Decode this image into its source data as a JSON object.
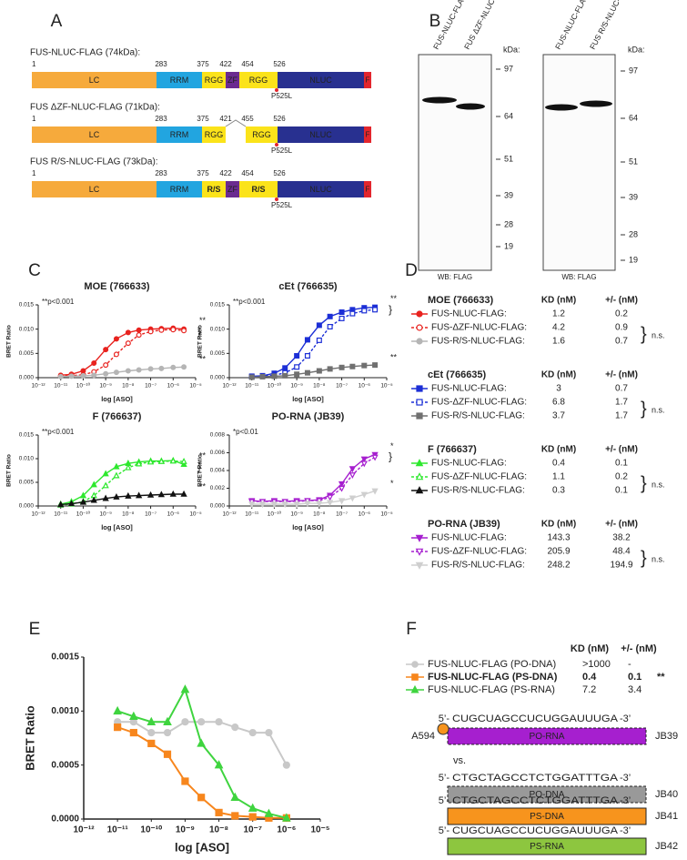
{
  "panel_labels": [
    "A",
    "B",
    "C",
    "D",
    "E",
    "F"
  ],
  "diagram_a": {
    "constructs": [
      {
        "label": "FUS-NLUC-FLAG (74kDa):",
        "positions": [
          1,
          283,
          375,
          422,
          454,
          526
        ],
        "domains": [
          "LC",
          "RRM",
          "RGG",
          "ZF",
          "RGG",
          "NLUC",
          "F"
        ],
        "mutation": "P525L"
      },
      {
        "label": "FUS ΔZF-NLUC-FLAG (71kDa):",
        "positions": [
          1,
          283,
          375,
          421,
          455,
          526
        ],
        "domains": [
          "LC",
          "RRM",
          "RGG",
          "RGG",
          "NLUC",
          "F"
        ],
        "mutation": "P525L"
      },
      {
        "label": "FUS R/S-NLUC-FLAG (73kDa):",
        "positions": [
          1,
          283,
          375,
          422,
          454,
          526
        ],
        "domains": [
          "LC",
          "RRM",
          "R/S",
          "ZF",
          "R/S",
          "NLUC",
          "F"
        ],
        "mutation": "P525L"
      }
    ]
  },
  "blot_b": {
    "blots": [
      {
        "lanes": [
          "FUS-NLUC-FLAG",
          "FUS ΔZF-NLUC-FLAG"
        ],
        "unit": "kDa:",
        "markers": [
          97,
          64,
          51,
          39,
          28,
          19
        ],
        "caption": "WB: FLAG"
      },
      {
        "lanes": [
          "FUS-NLUC-FLAG",
          "FUS R/S-NLUC-FLAG"
        ],
        "unit": "kDa:",
        "markers": [
          97,
          64,
          51,
          39,
          28,
          19
        ],
        "caption": "WB: FLAG"
      }
    ]
  },
  "chart_data": [
    {
      "type": "line",
      "title": "MOE (766633)",
      "significance": "**p<0.001",
      "marks": [
        "**",
        "**"
      ],
      "ylabel": "BRET Ratio",
      "xlabel": "log [ASO]",
      "xscale": "log",
      "x": [
        1e-11,
        3e-11,
        1e-10,
        3e-10,
        1e-09,
        3e-09,
        1e-08,
        3e-08,
        1e-07,
        3e-07,
        1e-06,
        3e-06
      ],
      "xlim": [
        1e-12,
        1e-05
      ],
      "ylim": [
        0,
        0.015
      ],
      "xticks": [
        {
          "value": 1e-12,
          "label": "10⁻¹²"
        },
        {
          "value": 1e-11,
          "label": "10⁻¹¹"
        },
        {
          "value": 1e-10,
          "label": "10⁻¹⁰"
        },
        {
          "value": 1e-09,
          "label": "10⁻⁹"
        },
        {
          "value": 1e-08,
          "label": "10⁻⁸"
        },
        {
          "value": 1e-07,
          "label": "10⁻⁷"
        },
        {
          "value": 1e-06,
          "label": "10⁻⁶"
        },
        {
          "value": 1e-05,
          "label": "10⁻⁵"
        }
      ],
      "yticks": [
        {
          "value": 0,
          "label": "0.000"
        },
        0.005,
        {
          "value": 0.01,
          "label": "0.010"
        },
        0.015
      ],
      "series": [
        {
          "color": "#e8231f",
          "marker": "circle",
          "fill": "solid",
          "values": [
            0.0005,
            0.0007,
            0.0014,
            0.003,
            0.0058,
            0.008,
            0.0093,
            0.0098,
            0.01,
            0.0101,
            0.0102,
            0.01
          ]
        },
        {
          "color": "#e8231f",
          "marker": "circle",
          "fill": "open",
          "dashed": true,
          "values": [
            0.0003,
            0.0004,
            0.0006,
            0.0012,
            0.0026,
            0.0048,
            0.0071,
            0.0088,
            0.0095,
            0.0098,
            0.0099,
            0.0097
          ]
        },
        {
          "color": "#b5b5b5",
          "marker": "circle",
          "fill": "solid",
          "values": [
            0.0002,
            0.0003,
            0.0004,
            0.0005,
            0.0008,
            0.0011,
            0.0014,
            0.0016,
            0.0018,
            0.0019,
            0.0021,
            0.0022
          ]
        }
      ]
    },
    {
      "type": "line",
      "title": "cEt (766635)",
      "significance": "**p<0.001",
      "marks": [
        "**",
        "**"
      ],
      "ylabel": "BRET Ratio",
      "xlabel": "log [ASO]",
      "xscale": "log",
      "x": [
        1e-11,
        3e-11,
        1e-10,
        3e-10,
        1e-09,
        3e-09,
        1e-08,
        3e-08,
        1e-07,
        3e-07,
        1e-06,
        3e-06
      ],
      "xlim": [
        1e-12,
        1e-05
      ],
      "ylim": [
        0,
        0.015
      ],
      "xticks": [
        {
          "value": 1e-12,
          "label": "10⁻¹²"
        },
        {
          "value": 1e-11,
          "label": "10⁻¹¹"
        },
        {
          "value": 1e-10,
          "label": "10⁻¹⁰"
        },
        {
          "value": 1e-09,
          "label": "10⁻⁹"
        },
        {
          "value": 1e-08,
          "label": "10⁻⁸"
        },
        {
          "value": 1e-07,
          "label": "10⁻⁷"
        },
        {
          "value": 1e-06,
          "label": "10⁻⁶"
        },
        {
          "value": 1e-05,
          "label": "10⁻⁵"
        }
      ],
      "yticks": [
        {
          "value": 0,
          "label": "0.000"
        },
        0.005,
        {
          "value": 0.01,
          "label": "0.010"
        },
        0.015
      ],
      "series": [
        {
          "color": "#1c2fd6",
          "marker": "square",
          "fill": "solid",
          "values": [
            0.0003,
            0.0004,
            0.0009,
            0.002,
            0.0045,
            0.0078,
            0.0108,
            0.0126,
            0.0135,
            0.014,
            0.0144,
            0.0145
          ]
        },
        {
          "color": "#1c2fd6",
          "marker": "square",
          "fill": "open",
          "dashed": true,
          "values": [
            0.0002,
            0.0003,
            0.0005,
            0.001,
            0.0022,
            0.0045,
            0.0077,
            0.0105,
            0.0122,
            0.0132,
            0.0138,
            0.014
          ]
        },
        {
          "color": "#707070",
          "marker": "square",
          "fill": "solid",
          "values": [
            0.0001,
            0.0002,
            0.0003,
            0.0004,
            0.0007,
            0.001,
            0.0014,
            0.0018,
            0.0021,
            0.0023,
            0.0025,
            0.0026
          ]
        }
      ]
    },
    {
      "type": "line",
      "title": "F (766637)",
      "significance": "**p<0.001",
      "marks": [
        "**",
        "**"
      ],
      "ylabel": "BRET Ratio",
      "xlabel": "log [ASO]",
      "xscale": "log",
      "x": [
        1e-11,
        3e-11,
        1e-10,
        3e-10,
        1e-09,
        3e-09,
        1e-08,
        3e-08,
        1e-07,
        3e-07,
        1e-06,
        3e-06
      ],
      "xlim": [
        1e-12,
        1e-05
      ],
      "ylim": [
        0,
        0.015
      ],
      "xticks": [
        {
          "value": 1e-12,
          "label": "10⁻¹²"
        },
        {
          "value": 1e-11,
          "label": "10⁻¹¹"
        },
        {
          "value": 1e-10,
          "label": "10⁻¹⁰"
        },
        {
          "value": 1e-09,
          "label": "10⁻⁹"
        },
        {
          "value": 1e-08,
          "label": "10⁻⁸"
        },
        {
          "value": 1e-07,
          "label": "10⁻⁷"
        },
        {
          "value": 1e-06,
          "label": "10⁻⁶"
        },
        {
          "value": 1e-05,
          "label": "10⁻⁵"
        }
      ],
      "yticks": [
        {
          "value": 0,
          "label": "0.000"
        },
        0.005,
        {
          "value": 0.01,
          "label": "0.010"
        },
        0.015
      ],
      "series": [
        {
          "color": "#2ee82e",
          "marker": "triangle",
          "fill": "solid",
          "values": [
            0.0004,
            0.0009,
            0.0022,
            0.0045,
            0.0068,
            0.0083,
            0.009,
            0.0093,
            0.0095,
            0.0095,
            0.0096,
            0.0088
          ]
        },
        {
          "color": "#2ee82e",
          "marker": "triangle",
          "fill": "open",
          "dashed": true,
          "values": [
            0.0002,
            0.0004,
            0.0009,
            0.0022,
            0.0043,
            0.0064,
            0.0081,
            0.0089,
            0.0093,
            0.0094,
            0.0095,
            0.0094
          ]
        },
        {
          "color": "#111111",
          "marker": "triangle",
          "fill": "solid",
          "values": [
            0.0003,
            0.0005,
            0.0008,
            0.0012,
            0.0016,
            0.0019,
            0.0021,
            0.0022,
            0.0023,
            0.0024,
            0.0025,
            0.0025
          ]
        }
      ]
    },
    {
      "type": "line",
      "title": "PO-RNA (JB39)",
      "significance": "*p<0.01",
      "marks": [
        "*",
        "*"
      ],
      "ylabel": "BRET Ratio",
      "xlabel": "log [ASO]",
      "xscale": "log",
      "x": [
        1e-11,
        3e-11,
        1e-10,
        3e-10,
        1e-09,
        3e-09,
        1e-08,
        3e-08,
        1e-07,
        3e-07,
        1e-06,
        3e-06
      ],
      "xlim": [
        1e-12,
        1e-05
      ],
      "ylim": [
        0,
        0.008
      ],
      "xticks": [
        {
          "value": 1e-12,
          "label": "10⁻¹²"
        },
        {
          "value": 1e-11,
          "label": "10⁻¹¹"
        },
        {
          "value": 1e-10,
          "label": "10⁻¹⁰"
        },
        {
          "value": 1e-09,
          "label": "10⁻⁹"
        },
        {
          "value": 1e-08,
          "label": "10⁻⁸"
        },
        {
          "value": 1e-07,
          "label": "10⁻⁷"
        },
        {
          "value": 1e-06,
          "label": "10⁻⁶"
        },
        {
          "value": 1e-05,
          "label": "10⁻⁵"
        }
      ],
      "yticks": [
        {
          "value": 0,
          "label": "0.000"
        },
        0.002,
        0.004,
        0.006,
        0.008
      ],
      "series": [
        {
          "color": "#a61fcf",
          "marker": "triangle-down",
          "fill": "solid",
          "values": [
            0.0006,
            0.0005,
            0.0006,
            0.0005,
            0.0006,
            0.0006,
            0.0007,
            0.0012,
            0.0025,
            0.0042,
            0.0053,
            0.0058
          ]
        },
        {
          "color": "#a61fcf",
          "marker": "triangle-down",
          "fill": "open",
          "dashed": true,
          "values": [
            0.0005,
            0.0005,
            0.0005,
            0.0005,
            0.0005,
            0.0006,
            0.0006,
            0.001,
            0.002,
            0.0035,
            0.0048,
            0.0055
          ]
        },
        {
          "color": "#cfcfcf",
          "marker": "triangle-down",
          "fill": "solid",
          "values": [
            0.0002,
            0.0002,
            0.0002,
            0.0002,
            0.0002,
            0.0003,
            0.0003,
            0.0004,
            0.0006,
            0.0009,
            0.0013,
            0.0017
          ]
        }
      ]
    },
    {
      "type": "line",
      "ylabel": "BRET Ratio",
      "xlabel": "log [ASO]",
      "xscale": "log",
      "x": [
        1e-11,
        3e-11,
        1e-10,
        3e-10,
        1e-09,
        3e-09,
        1e-08,
        3e-08,
        1e-07,
        3e-07,
        1e-06
      ],
      "xlim": [
        1e-12,
        1e-05
      ],
      "ylim": [
        0,
        0.0015
      ],
      "xticks": [
        {
          "value": 1e-12,
          "label": "10⁻¹²"
        },
        {
          "value": 1e-11,
          "label": "10⁻¹¹"
        },
        {
          "value": 1e-10,
          "label": "10⁻¹⁰"
        },
        {
          "value": 1e-09,
          "label": "10⁻⁹"
        },
        {
          "value": 1e-08,
          "label": "10⁻⁸"
        },
        {
          "value": 1e-07,
          "label": "10⁻⁷"
        },
        {
          "value": 1e-06,
          "label": "10⁻⁶"
        },
        {
          "value": 1e-05,
          "label": "10⁻⁵"
        }
      ],
      "yticks": [
        {
          "value": 0,
          "label": "0.0000"
        },
        0.0005,
        {
          "value": 0.001,
          "label": "0.0010"
        },
        0.0015
      ],
      "series": [
        {
          "color": "#c8c8c8",
          "marker": "circle",
          "fill": "solid",
          "values": [
            0.0009,
            0.0009,
            0.0008,
            0.0008,
            0.0009,
            0.0009,
            0.0009,
            0.00085,
            0.0008,
            0.0008,
            0.0005
          ]
        },
        {
          "color": "#f7861d",
          "marker": "square",
          "fill": "solid",
          "values": [
            0.00085,
            0.0008,
            0.0007,
            0.0006,
            0.00035,
            0.0002,
            6e-05,
            3e-05,
            2e-05,
            1e-05,
            1e-05
          ]
        },
        {
          "color": "#3fd43f",
          "marker": "triangle",
          "fill": "solid",
          "values": [
            0.001,
            0.00095,
            0.0009,
            0.0009,
            0.0012,
            0.0007,
            0.0005,
            0.0002,
            0.0001,
            5e-05,
            1e-05
          ]
        }
      ]
    }
  ],
  "table_d": {
    "groups": [
      {
        "title": "MOE (766633)",
        "kd_header": "KD (nM)",
        "err_header": "+/- (nM)",
        "ns": "n.s.",
        "rows": [
          {
            "name": "FUS-NLUC-FLAG:",
            "kd": 1.2,
            "err": 0.2
          },
          {
            "name": "FUS-ΔZF-NLUC-FLAG:",
            "kd": 4.2,
            "err": 0.9
          },
          {
            "name": "FUS-R/S-NLUC-FLAG:",
            "kd": 1.6,
            "err": 0.7
          }
        ]
      },
      {
        "title": "cEt (766635)",
        "kd_header": "KD (nM)",
        "err_header": "+/- (nM)",
        "ns": "n.s.",
        "rows": [
          {
            "name": "FUS-NLUC-FLAG:",
            "kd": 3.0,
            "err": 0.7
          },
          {
            "name": "FUS-ΔZF-NLUC-FLAG:",
            "kd": 6.8,
            "err": 1.7
          },
          {
            "name": "FUS-R/S-NLUC-FLAG:",
            "kd": 3.7,
            "err": 1.7
          }
        ]
      },
      {
        "title": "F (766637)",
        "kd_header": "KD (nM)",
        "err_header": "+/- (nM)",
        "ns": "n.s.",
        "rows": [
          {
            "name": "FUS-NLUC-FLAG:",
            "kd": 0.4,
            "err": 0.1
          },
          {
            "name": "FUS-ΔZF-NLUC-FLAG:",
            "kd": 1.1,
            "err": 0.2
          },
          {
            "name": "FUS-R/S-NLUC-FLAG:",
            "kd": 0.3,
            "err": 0.1
          }
        ]
      },
      {
        "title": "PO-RNA (JB39)",
        "kd_header": "KD (nM)",
        "err_header": "+/- (nM)",
        "ns": "n.s.",
        "rows": [
          {
            "name": "FUS-NLUC-FLAG:",
            "kd": 143.3,
            "err": 38.2
          },
          {
            "name": "FUS-ΔZF-NLUC-FLAG:",
            "kd": 205.9,
            "err": 48.4
          },
          {
            "name": "FUS-R/S-NLUC-FLAG:",
            "kd": 248.2,
            "err": 194.9
          }
        ]
      }
    ]
  },
  "panel_f": {
    "kd_header": "KD (nM)",
    "err_header": "+/- (nM)",
    "rows": [
      {
        "name": "FUS-NLUC-FLAG (PO-DNA)",
        "kd": ">1000",
        "err": "-"
      },
      {
        "name": "FUS-NLUC-FLAG (PS-DNA)",
        "kd": 0.4,
        "err": 0.1,
        "sig": "**"
      },
      {
        "name": "FUS-NLUC-FLAG (PS-RNA)",
        "kd": 7.2,
        "err": 3.4
      }
    ],
    "fluor": "A594",
    "vs": "vs.",
    "sequences": [
      {
        "five": "5’-",
        "seq": "CUGCUAGCCUCUGGAUUUGA",
        "three": "-3’",
        "box": "PO-RNA",
        "id": "JB39",
        "color": "#a61fcf"
      },
      {
        "five": "5’-",
        "seq": "CTGCTAGCCTCTGGATTTGA",
        "three": "-3’",
        "box": "PO-DNA",
        "id": "JB40",
        "color": "#999999"
      },
      {
        "five": "5’-",
        "seq": "CTGCTAGCCTCTGGATTTGA",
        "three": "-3’",
        "box": "PS-DNA",
        "id": "JB41",
        "color": "#f7941d"
      },
      {
        "five": "5’-",
        "seq": "CUGCUAGCCUCUGGAUUUGA",
        "three": "-3’",
        "box": "PS-RNA",
        "id": "JB42",
        "color": "#8dc63f"
      }
    ]
  }
}
